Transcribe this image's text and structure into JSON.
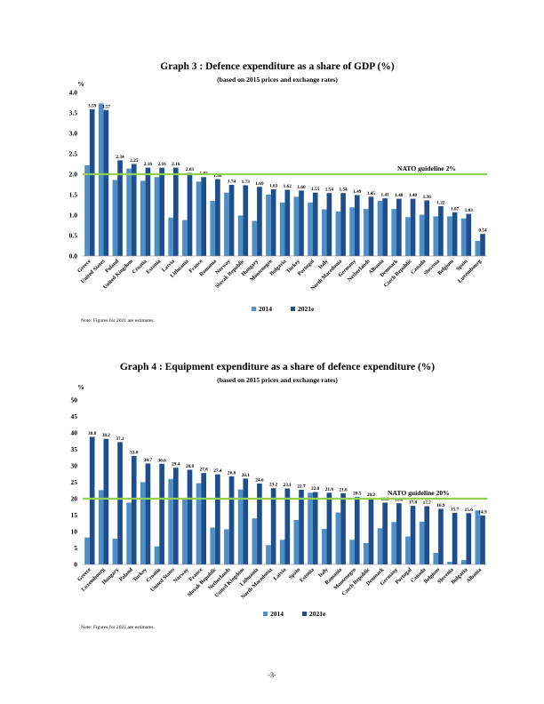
{
  "colors": {
    "series_2014": "#4f8fc7",
    "series_2021e": "#1f4e8c",
    "guideline": "#92d050",
    "grid": "#d9d9d9"
  },
  "chart_data": [
    {
      "type": "bar",
      "title": "Graph 3 : Defence expenditure as a share of GDP (%)",
      "subtitle": "(based on 2015 prices and exchange rates)",
      "ylabel": "%",
      "ylim": [
        0,
        4
      ],
      "yticks": [
        "0.0",
        "0.5",
        "1.0",
        "1.5",
        "2.0",
        "2.5",
        "3.0",
        "3.5",
        "4.0"
      ],
      "guideline": {
        "value": 2,
        "label": "NATO guideline 2%"
      },
      "categories": [
        "Greece",
        "United States",
        "Poland",
        "United Kingdom",
        "Croatia",
        "Estonia",
        "Latvia",
        "Lithuania",
        "France",
        "Romania",
        "Norway",
        "Slovak Republic",
        "Hungary",
        "Montenegro",
        "Bulgaria",
        "Turkey",
        "Portugal",
        "Italy",
        "North Macedonia",
        "Germany",
        "Netherlands",
        "Albania",
        "Denmark",
        "Czech Republic",
        "Canada",
        "Slovenia",
        "Belgium",
        "Spain",
        "Luxembourg"
      ],
      "series": [
        {
          "name": "2014",
          "values": [
            2.22,
            3.73,
            1.86,
            2.14,
            1.84,
            1.93,
            0.94,
            0.88,
            1.82,
            1.35,
            1.55,
            0.99,
            0.86,
            1.5,
            1.31,
            1.45,
            1.31,
            1.14,
            1.09,
            1.19,
            1.15,
            1.35,
            1.15,
            0.95,
            1.01,
            0.97,
            0.97,
            0.92,
            0.37
          ]
        },
        {
          "name": "2021e",
          "values": [
            3.59,
            3.57,
            2.34,
            2.25,
            2.16,
            2.16,
            2.16,
            2.03,
            1.93,
            1.88,
            1.74,
            1.73,
            1.69,
            1.63,
            1.62,
            1.6,
            1.55,
            1.54,
            1.54,
            1.49,
            1.45,
            1.41,
            1.4,
            1.4,
            1.36,
            1.22,
            1.07,
            1.03,
            0.54
          ]
        }
      ],
      "data_labels": [
        "3.59",
        "3.57",
        "2.34",
        "2.25",
        "2.16",
        "2.16",
        "2.16",
        "2.03",
        "1.93",
        "1.88",
        "1.74",
        "1.73",
        "1.69",
        "1.63",
        "1.62",
        "1.60",
        "1.55",
        "1.54",
        "1.54",
        "1.49",
        "1.45",
        "1.41",
        "1.40",
        "1.40",
        "1.36",
        "1.22",
        "1.07",
        "1.03",
        "0.54"
      ],
      "legend": [
        "2014",
        "2021e"
      ],
      "legend_position": "bottom",
      "grid": false
    },
    {
      "type": "bar",
      "title": "Graph 4 : Equipment expenditure as a share of defence expenditure (%)",
      "subtitle": "(based on 2015 prices and exchange rates)",
      "ylabel": "%",
      "ylim": [
        0,
        50
      ],
      "yticks": [
        "0",
        "5",
        "10",
        "15",
        "20",
        "25",
        "30",
        "35",
        "40",
        "45",
        "50"
      ],
      "guideline": {
        "value": 20,
        "label": "NATO guideline 20%"
      },
      "categories": [
        "Greece",
        "Luxembourg",
        "Hungary",
        "Poland",
        "Turkey",
        "Croatia",
        "United States",
        "Norway",
        "France",
        "Slovak Republic",
        "Netherlands",
        "United Kingdom",
        "Lithuania",
        "North Macedonia",
        "Latvia",
        "Spain",
        "Estonia",
        "Italy",
        "Romania",
        "Montenegro",
        "Czech Republic",
        "Denmark",
        "Germany",
        "Portugal",
        "Canada",
        "Belgium",
        "Slovenia",
        "Bulgaria",
        "Albania"
      ],
      "series": [
        {
          "name": "2014",
          "values": [
            8.2,
            22.6,
            7.8,
            18.8,
            25.0,
            5.5,
            26.0,
            20.0,
            24.7,
            11.2,
            10.7,
            22.8,
            14.0,
            5.9,
            7.5,
            13.5,
            21.8,
            10.8,
            15.8,
            7.5,
            6.5,
            11.0,
            12.9,
            8.5,
            13.0,
            3.5,
            0.8,
            1.3,
            16.4
          ]
        },
        {
          "name": "2021e",
          "values": [
            38.8,
            38.2,
            37.2,
            33.0,
            30.7,
            30.6,
            29.4,
            28.8,
            27.8,
            27.4,
            26.8,
            26.1,
            24.6,
            23.2,
            23.1,
            22.7,
            22.0,
            21.8,
            21.6,
            20.5,
            20.2,
            18.8,
            18.6,
            17.8,
            17.7,
            16.9,
            15.7,
            15.6,
            14.9
          ]
        }
      ],
      "data_labels": [
        "38.8",
        "38.2",
        "37.2",
        "33.0",
        "30.7",
        "30.6",
        "29.4",
        "28.8",
        "27.8",
        "27.4",
        "26.8",
        "26.1",
        "24.6",
        "23.2",
        "23.1",
        "22.7",
        "22.0",
        "21.8",
        "21.6",
        "20.5",
        "20.2",
        "18.8",
        "18.6",
        "17.8",
        "17.7",
        "16.9",
        "15.7",
        "15.6",
        "14.9"
      ],
      "legend": [
        "2014",
        "2021e"
      ],
      "legend_position": "bottom",
      "grid": false
    }
  ],
  "notes": [
    "Note: Figures for 2021 are estimates.",
    "Note: Figures for 2021 are estimates."
  ],
  "page_number": "-3-"
}
